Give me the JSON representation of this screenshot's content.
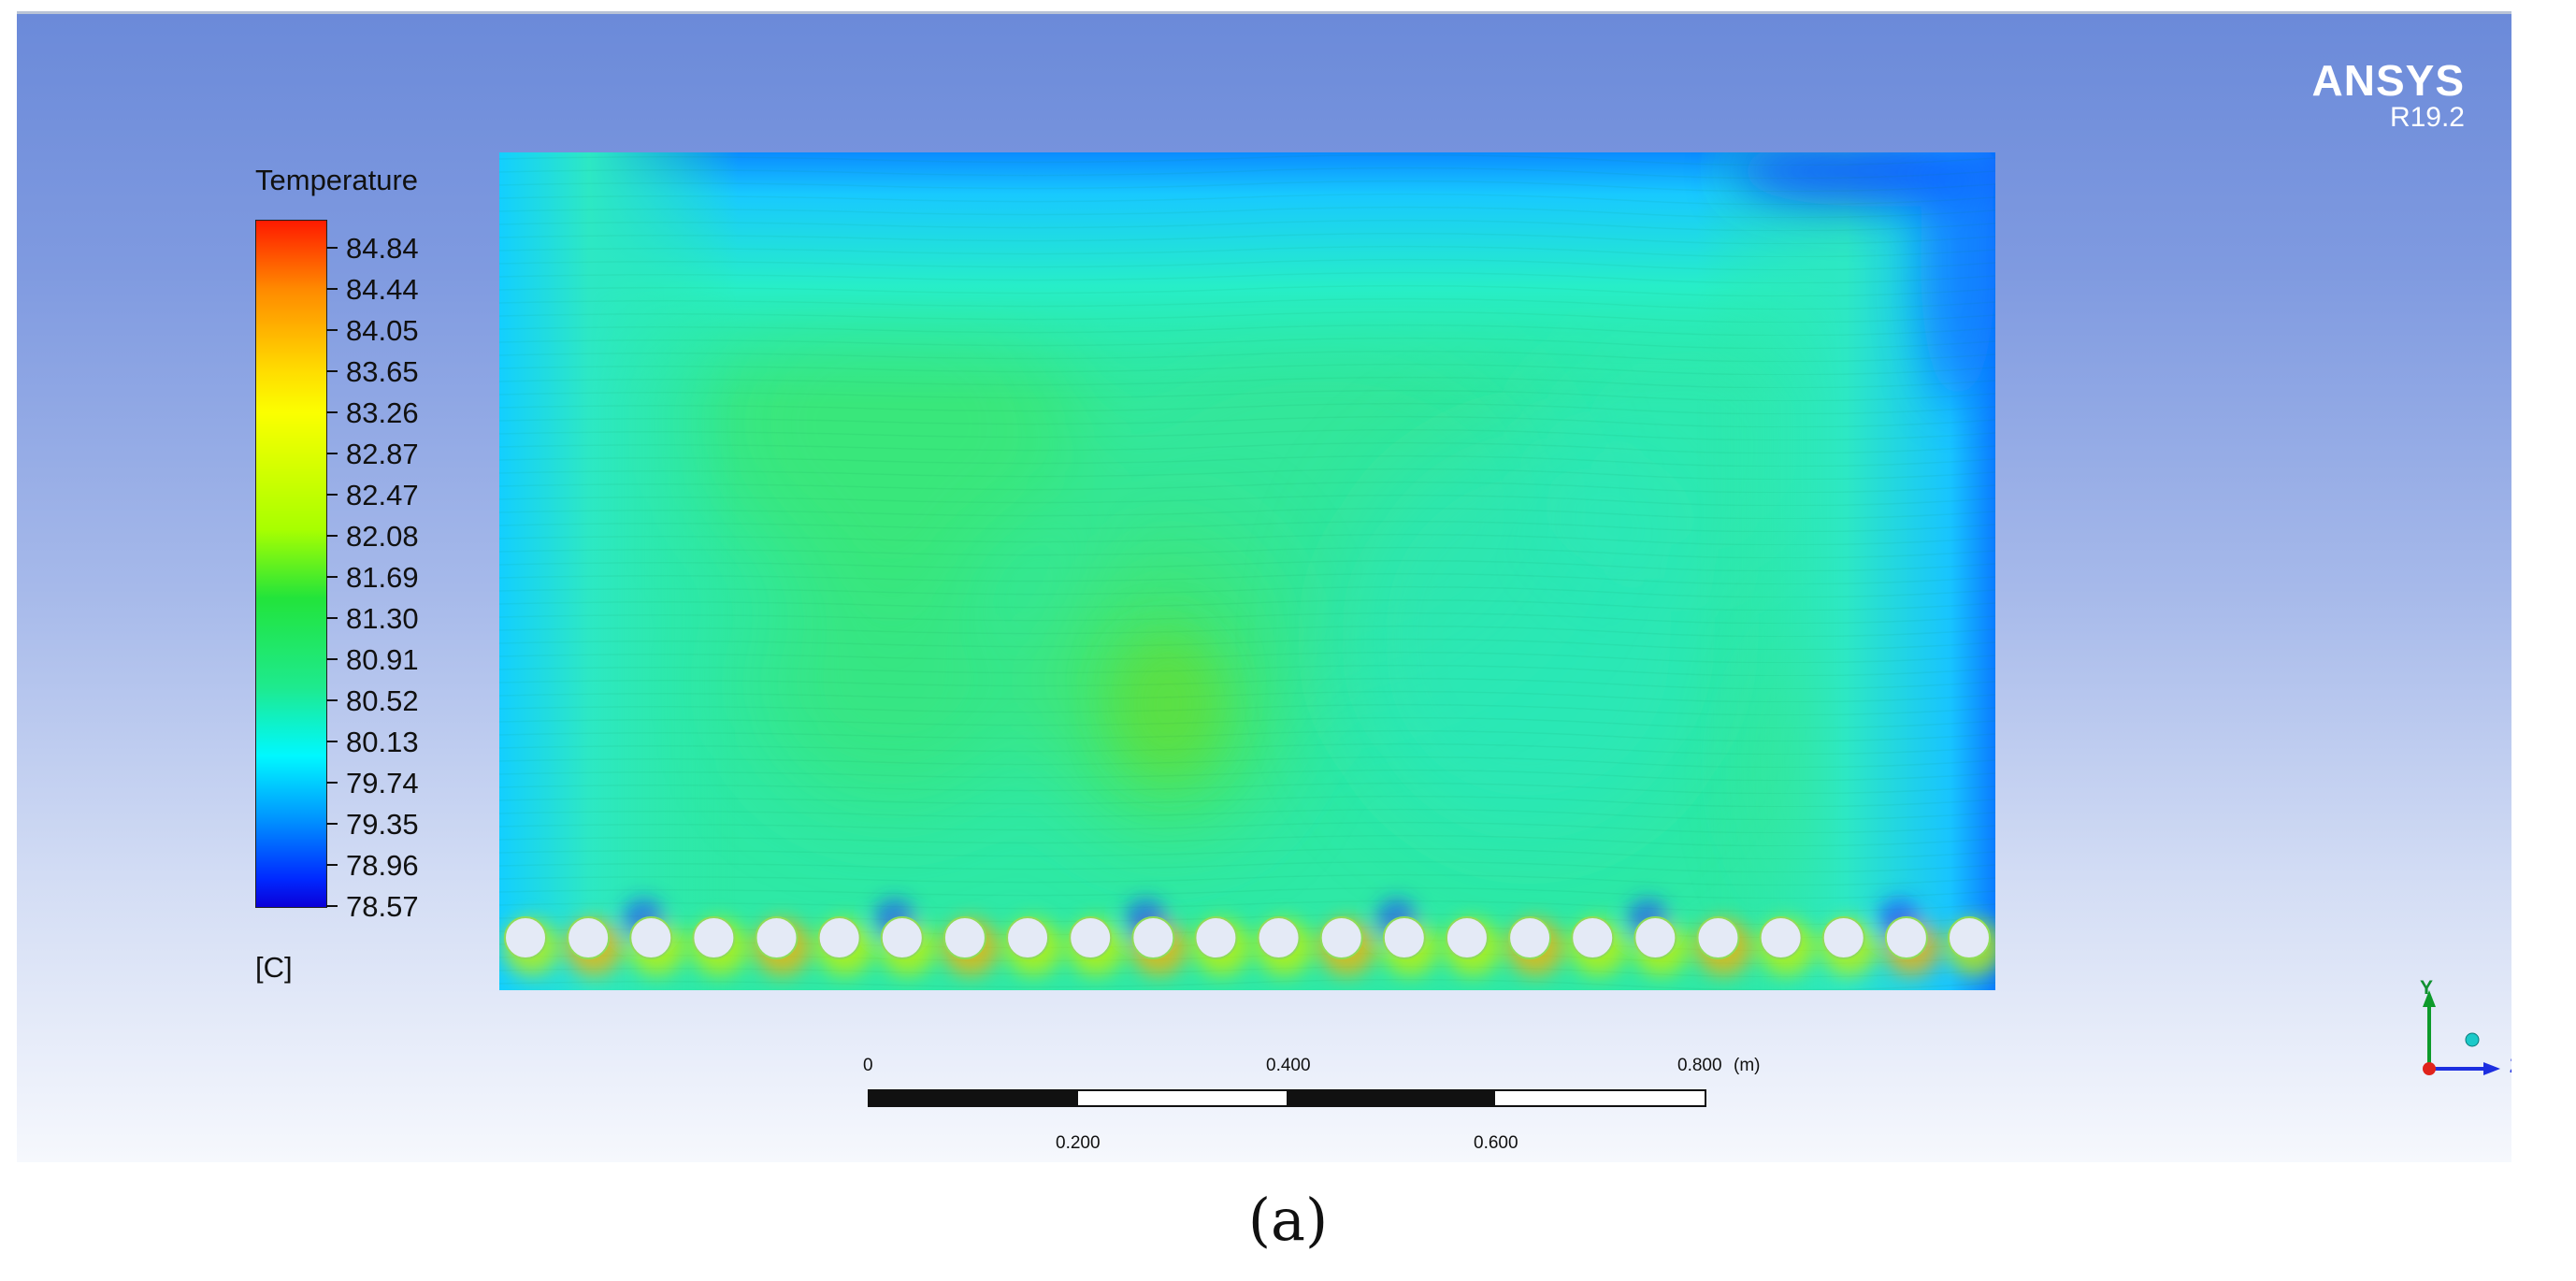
{
  "legend": {
    "title": "Temperature",
    "units": "[C]",
    "values": [
      "84.84",
      "84.44",
      "84.05",
      "83.65",
      "83.26",
      "82.87",
      "82.47",
      "82.08",
      "81.69",
      "81.30",
      "80.91",
      "80.52",
      "80.13",
      "79.74",
      "79.35",
      "78.96",
      "78.57"
    ]
  },
  "brand": {
    "name": "ANSYS",
    "version": "R19.2"
  },
  "scale_bar": {
    "top_labels": [
      "0",
      "0.400",
      "0.800"
    ],
    "unit": "(m)",
    "bottom_labels": [
      "0.200",
      "0.600"
    ]
  },
  "triad": {
    "y_label": "Y",
    "z_label": "Z"
  },
  "contour": {
    "tube_count": 24,
    "min_c": 78.57,
    "max_c": 84.84
  },
  "caption": "(a)"
}
